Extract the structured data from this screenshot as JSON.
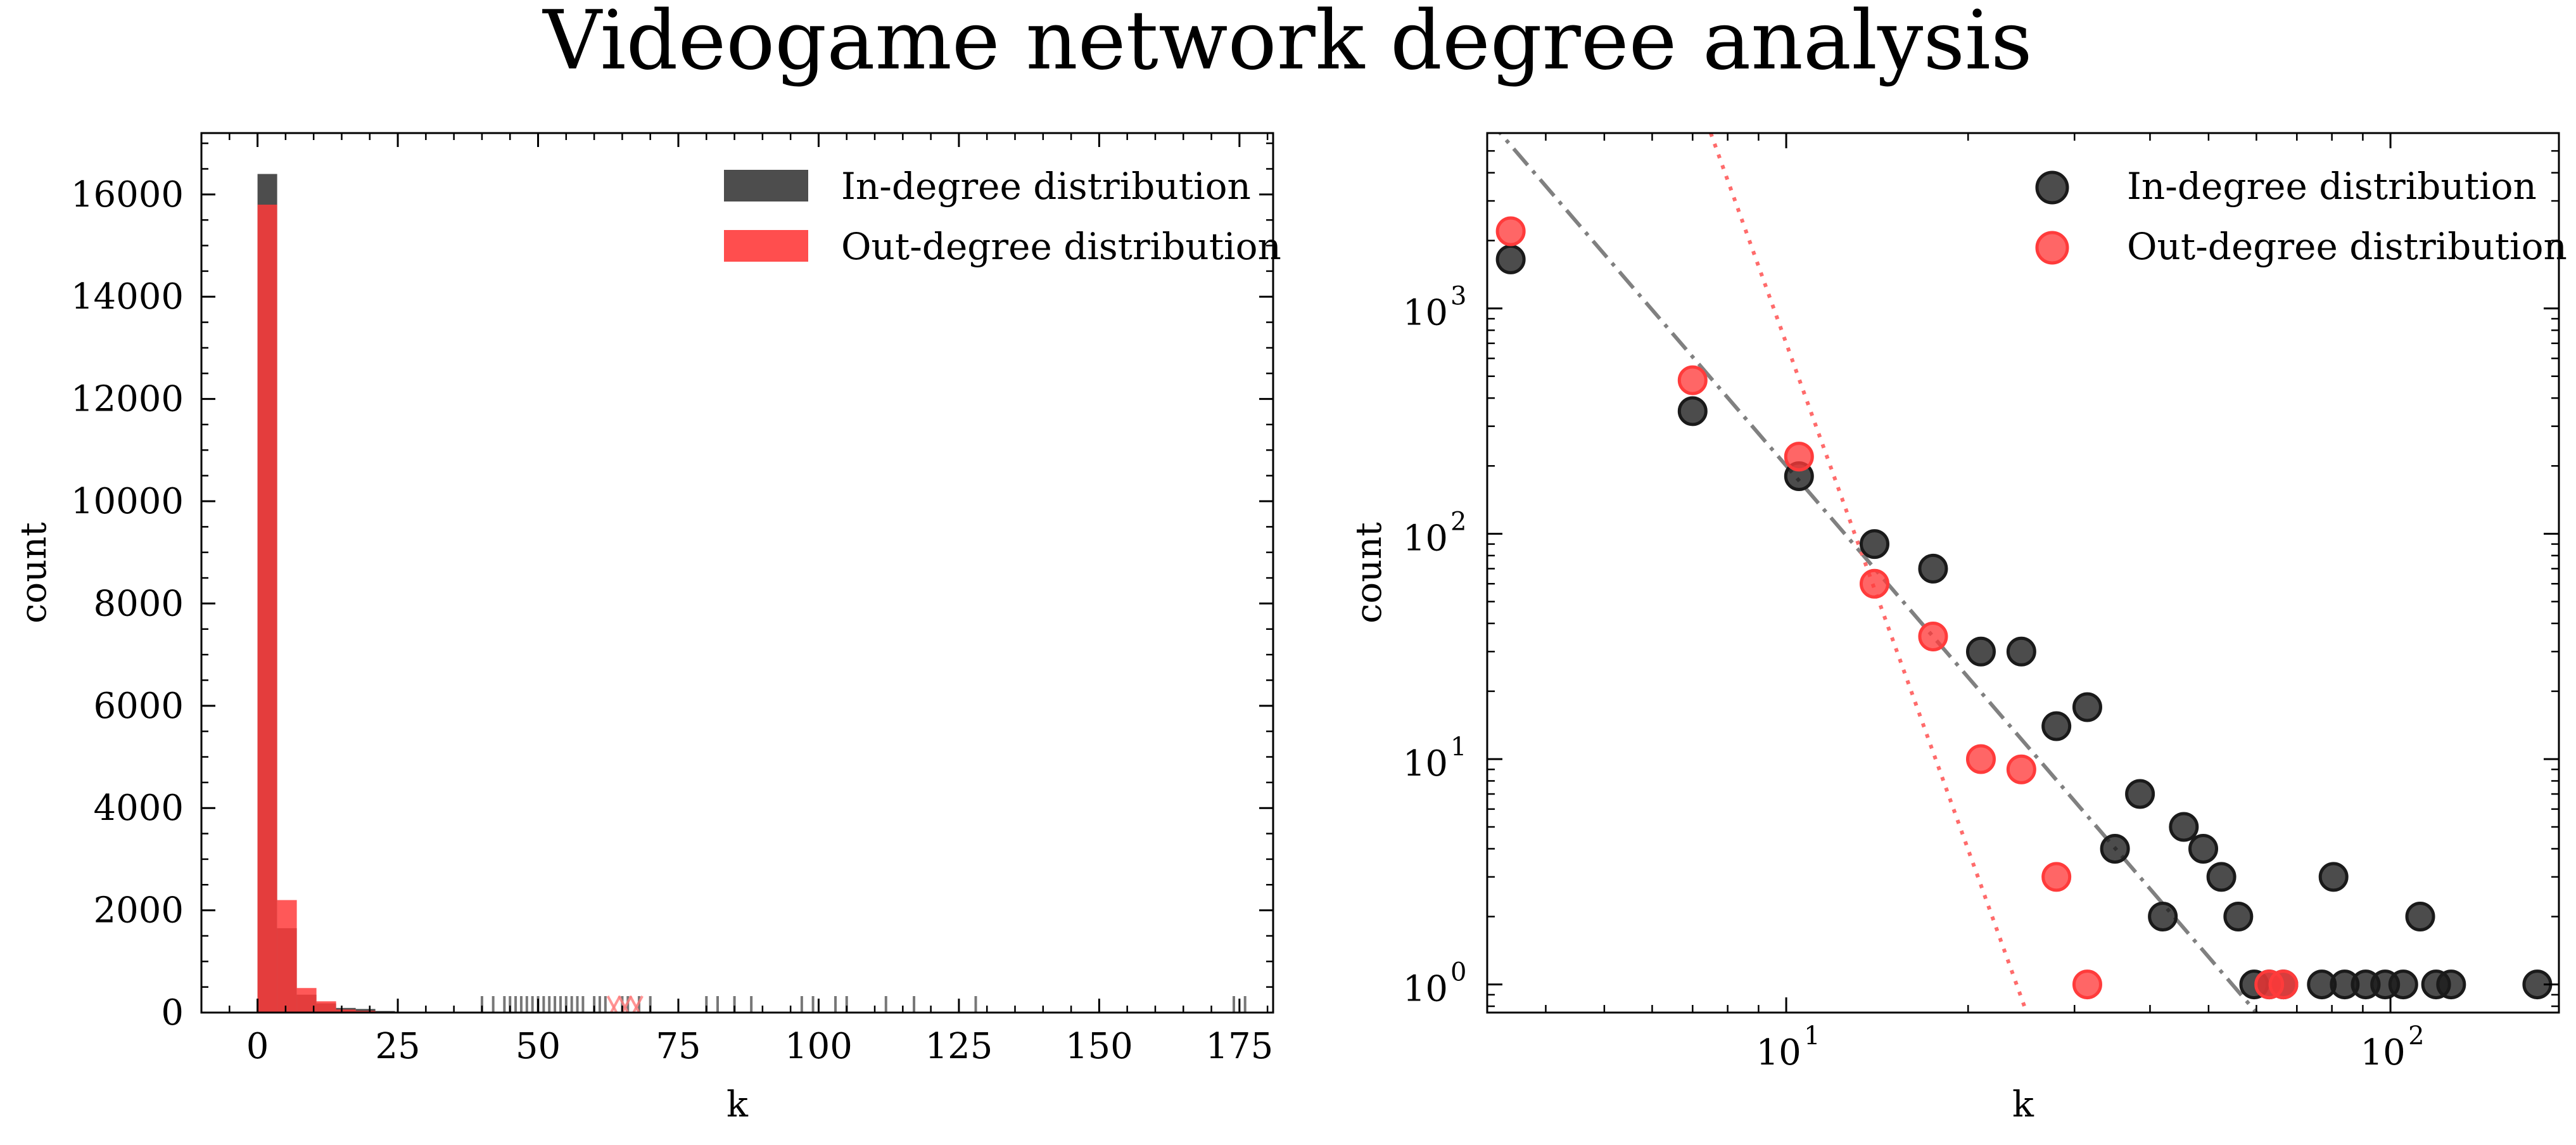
{
  "figure": {
    "title": "Videogame network degree analysis"
  },
  "chart_data": [
    {
      "type": "bar",
      "subtype": "histogram",
      "xlabel": "k",
      "ylabel": "count",
      "xlim": [
        -10,
        181
      ],
      "ylim": [
        0,
        17200
      ],
      "xticks": [
        0,
        25,
        50,
        75,
        100,
        125,
        150,
        175
      ],
      "xtick_labels": [
        "0",
        "25",
        "50",
        "75",
        "100",
        "125",
        "150",
        "175"
      ],
      "yticks": [
        0,
        2000,
        4000,
        6000,
        8000,
        10000,
        12000,
        14000,
        16000
      ],
      "ytick_labels": [
        "0",
        "2000",
        "4000",
        "6000",
        "8000",
        "10000",
        "12000",
        "14000",
        "16000"
      ],
      "legend_position": "top-right",
      "series": [
        {
          "name": "In-degree distribution",
          "color": "#3a3a3a",
          "bin_width": 3.5,
          "bin_edges_start": [
            0,
            3.5,
            7,
            10.5,
            14,
            17.5,
            21
          ],
          "values": [
            16400,
            1650,
            350,
            180,
            90,
            70,
            30
          ]
        },
        {
          "name": "Out-degree distribution",
          "color": "#ff3b3b",
          "bin_width": 3.5,
          "bin_edges_start": [
            0,
            3.5,
            7,
            10.5,
            14,
            17.5,
            21
          ],
          "values": [
            15800,
            2200,
            480,
            220,
            60,
            35,
            10
          ]
        }
      ],
      "rug": {
        "in_degree_k": [
          40,
          42,
          44,
          45,
          46,
          47,
          48,
          49,
          50,
          51,
          52,
          53,
          54,
          55,
          56,
          57,
          58,
          60,
          61,
          62,
          65,
          66,
          68,
          70,
          80,
          82,
          85,
          88,
          97,
          99,
          103,
          105,
          112,
          117,
          128,
          174,
          176
        ],
        "out_degree_k": [
          63,
          64,
          65,
          66,
          67,
          68
        ]
      }
    },
    {
      "type": "scatter",
      "xscale": "log",
      "yscale": "log",
      "xlabel": "k",
      "ylabel": "count",
      "xlim": [
        3.2,
        190
      ],
      "ylim": [
        0.75,
        6000
      ],
      "xticks": [
        10,
        100
      ],
      "xtick_labels": [
        {
          "base": "10",
          "exp": "1"
        },
        {
          "base": "10",
          "exp": "2"
        }
      ],
      "yticks": [
        1,
        10,
        100,
        1000
      ],
      "ytick_labels": [
        {
          "base": "10",
          "exp": "0"
        },
        {
          "base": "10",
          "exp": "1"
        },
        {
          "base": "10",
          "exp": "2"
        },
        {
          "base": "10",
          "exp": "3"
        }
      ],
      "legend_position": "top-right",
      "series": [
        {
          "name": "In-degree distribution",
          "color": "#1a1a1a",
          "points": [
            [
              3.5,
              1650
            ],
            [
              7,
              350
            ],
            [
              10.5,
              180
            ],
            [
              14,
              90
            ],
            [
              17.5,
              70
            ],
            [
              21,
              30
            ],
            [
              24.5,
              30
            ],
            [
              28,
              14
            ],
            [
              31.5,
              17
            ],
            [
              35,
              4
            ],
            [
              38.5,
              7
            ],
            [
              42,
              2
            ],
            [
              45.5,
              5
            ],
            [
              49,
              4
            ],
            [
              52.5,
              3
            ],
            [
              56,
              2
            ],
            [
              59.5,
              1
            ],
            [
              63,
              1
            ],
            [
              66.5,
              1
            ],
            [
              77,
              1
            ],
            [
              84,
              1
            ],
            [
              80.5,
              3
            ],
            [
              91,
              1
            ],
            [
              98,
              1
            ],
            [
              105,
              1
            ],
            [
              112,
              2
            ],
            [
              119,
              1
            ],
            [
              126,
              1
            ],
            [
              175,
              1
            ]
          ]
        },
        {
          "name": "Out-degree distribution",
          "color": "#ff3b3b",
          "points": [
            [
              3.5,
              2200
            ],
            [
              7,
              480
            ],
            [
              10.5,
              220
            ],
            [
              14,
              60
            ],
            [
              17.5,
              35
            ],
            [
              21,
              10
            ],
            [
              24.5,
              9
            ],
            [
              28,
              3
            ],
            [
              31.5,
              1
            ],
            [
              63,
              1
            ],
            [
              66.5,
              1
            ]
          ]
        }
      ],
      "fit_lines": [
        {
          "style": "dashdot",
          "color": "#808080",
          "points": [
            [
              3.2,
              7000
            ],
            [
              60,
              0.75
            ]
          ]
        },
        {
          "style": "dotted",
          "color": "#ff6b6b",
          "points": [
            [
              7.5,
              6000
            ],
            [
              25,
              0.75
            ]
          ]
        }
      ]
    }
  ]
}
